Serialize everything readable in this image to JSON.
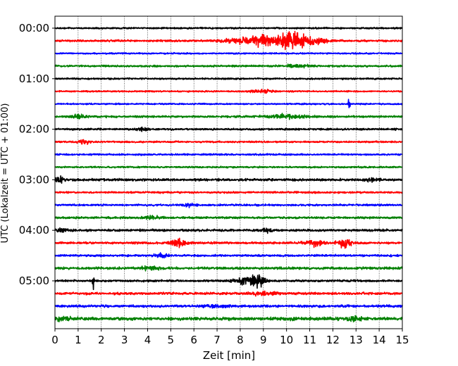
{
  "chart_data": {
    "type": "line",
    "title": "",
    "xlabel": "Zeit  [min]",
    "ylabel": "UTC (Lokalzeit = UTC + 01:00)",
    "xlim": [
      0,
      15
    ],
    "x_ticks": [
      "0",
      "1",
      "2",
      "3",
      "4",
      "5",
      "6",
      "7",
      "8",
      "9",
      "10",
      "11",
      "12",
      "13",
      "14",
      "15"
    ],
    "y_ticks": [
      "00:00",
      "01:00",
      "02:00",
      "03:00",
      "04:00",
      "05:00"
    ],
    "grid": "vertical dotted lines at each minute",
    "row_interval_min": 15,
    "trace_colors": [
      "#000000",
      "#ff0000",
      "#0000ff",
      "#008000"
    ],
    "traces": [
      {
        "start": "00:00",
        "color": "#000000",
        "base": 0.9,
        "events": []
      },
      {
        "start": "00:15",
        "color": "#ff0000",
        "base": 1.1,
        "events": [
          {
            "t": 8.0,
            "w": 0.8,
            "a": 2.5
          },
          {
            "t": 9.0,
            "w": 0.5,
            "a": 6
          },
          {
            "t": 10.2,
            "w": 0.6,
            "a": 10
          },
          {
            "t": 11.2,
            "w": 0.6,
            "a": 3
          }
        ]
      },
      {
        "start": "00:30",
        "color": "#0000ff",
        "base": 0.8,
        "events": []
      },
      {
        "start": "00:45",
        "color": "#008000",
        "base": 1.0,
        "events": [
          {
            "t": 10.5,
            "w": 0.6,
            "a": 1.3
          }
        ]
      },
      {
        "start": "01:00",
        "color": "#000000",
        "base": 0.9,
        "events": []
      },
      {
        "start": "01:15",
        "color": "#ff0000",
        "base": 0.8,
        "events": [
          {
            "t": 9.0,
            "w": 0.6,
            "a": 1.4
          }
        ]
      },
      {
        "start": "01:30",
        "color": "#0000ff",
        "base": 0.8,
        "events": [
          {
            "t": 12.7,
            "w": 0.05,
            "a": 8
          }
        ]
      },
      {
        "start": "01:45",
        "color": "#008000",
        "base": 1.1,
        "events": [
          {
            "t": 1.0,
            "w": 0.3,
            "a": 2
          },
          {
            "t": 10.0,
            "w": 0.8,
            "a": 2
          }
        ]
      },
      {
        "start": "02:00",
        "color": "#000000",
        "base": 1.0,
        "events": [
          {
            "t": 3.8,
            "w": 0.2,
            "a": 1.8
          }
        ]
      },
      {
        "start": "02:15",
        "color": "#ff0000",
        "base": 0.9,
        "events": [
          {
            "t": 1.3,
            "w": 0.3,
            "a": 2
          }
        ]
      },
      {
        "start": "02:30",
        "color": "#0000ff",
        "base": 0.9,
        "events": []
      },
      {
        "start": "02:45",
        "color": "#008000",
        "base": 0.9,
        "events": []
      },
      {
        "start": "03:00",
        "color": "#000000",
        "base": 1.3,
        "events": [
          {
            "t": 0.2,
            "w": 0.2,
            "a": 2.5
          },
          {
            "t": 13.7,
            "w": 0.3,
            "a": 2
          }
        ]
      },
      {
        "start": "03:15",
        "color": "#ff0000",
        "base": 1.0,
        "events": []
      },
      {
        "start": "03:30",
        "color": "#0000ff",
        "base": 1.0,
        "events": [
          {
            "t": 5.8,
            "w": 0.3,
            "a": 1.5
          }
        ]
      },
      {
        "start": "03:45",
        "color": "#008000",
        "base": 1.1,
        "events": [
          {
            "t": 4.2,
            "w": 0.5,
            "a": 1.5
          }
        ]
      },
      {
        "start": "04:00",
        "color": "#000000",
        "base": 1.2,
        "events": [
          {
            "t": 0.3,
            "w": 0.3,
            "a": 1.8
          },
          {
            "t": 9.2,
            "w": 0.2,
            "a": 2.2
          }
        ]
      },
      {
        "start": "04:15",
        "color": "#ff0000",
        "base": 1.1,
        "events": [
          {
            "t": 5.3,
            "w": 0.3,
            "a": 6
          },
          {
            "t": 11.2,
            "w": 0.4,
            "a": 3
          },
          {
            "t": 12.5,
            "w": 0.3,
            "a": 5
          }
        ]
      },
      {
        "start": "04:30",
        "color": "#0000ff",
        "base": 1.1,
        "events": [
          {
            "t": 4.6,
            "w": 0.3,
            "a": 2
          }
        ]
      },
      {
        "start": "04:45",
        "color": "#008000",
        "base": 1.3,
        "events": [
          {
            "t": 4.1,
            "w": 0.4,
            "a": 1.6
          }
        ]
      },
      {
        "start": "05:00",
        "color": "#000000",
        "base": 1.1,
        "events": [
          {
            "t": 1.65,
            "w": 0.03,
            "a": 16
          },
          {
            "t": 8.3,
            "w": 0.5,
            "a": 4
          },
          {
            "t": 8.8,
            "w": 0.3,
            "a": 6
          }
        ]
      },
      {
        "start": "05:15",
        "color": "#ff0000",
        "base": 1.3,
        "events": [
          {
            "t": 9.0,
            "w": 0.5,
            "a": 1.8
          }
        ]
      },
      {
        "start": "05:30",
        "color": "#0000ff",
        "base": 1.3,
        "events": [
          {
            "t": 7.0,
            "w": 0.5,
            "a": 1.5
          }
        ]
      },
      {
        "start": "05:45",
        "color": "#008000",
        "base": 1.7,
        "events": [
          {
            "t": 0.3,
            "w": 0.3,
            "a": 2
          },
          {
            "t": 12.9,
            "w": 0.3,
            "a": 2.4
          }
        ]
      }
    ]
  }
}
